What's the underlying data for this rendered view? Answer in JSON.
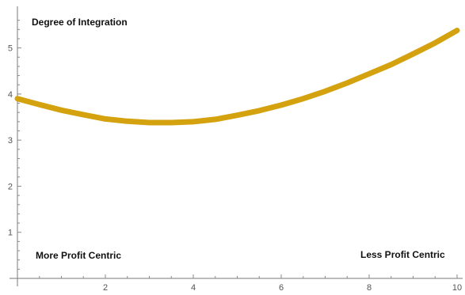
{
  "chart_data": {
    "type": "line",
    "xlim": [
      0,
      10
    ],
    "ylim": [
      0,
      5.8
    ],
    "x_ticks": [
      2,
      4,
      6,
      8,
      10
    ],
    "y_ticks": [
      1,
      2,
      3,
      4,
      5
    ],
    "grid": false,
    "series": [
      {
        "color": "#D4A20E",
        "points": [
          [
            0.0,
            3.9
          ],
          [
            0.5,
            3.77
          ],
          [
            1.0,
            3.65
          ],
          [
            1.5,
            3.55
          ],
          [
            2.0,
            3.46
          ],
          [
            2.5,
            3.41
          ],
          [
            3.0,
            3.38
          ],
          [
            3.5,
            3.38
          ],
          [
            4.0,
            3.4
          ],
          [
            4.5,
            3.45
          ],
          [
            5.0,
            3.54
          ],
          [
            5.5,
            3.64
          ],
          [
            6.0,
            3.76
          ],
          [
            6.5,
            3.9
          ],
          [
            7.0,
            4.06
          ],
          [
            7.5,
            4.24
          ],
          [
            8.0,
            4.44
          ],
          [
            8.5,
            4.64
          ],
          [
            9.0,
            4.87
          ],
          [
            9.5,
            5.11
          ],
          [
            10.0,
            5.38
          ]
        ]
      }
    ],
    "annotations": {
      "top_left": "Degree of Integration",
      "bottom_left": "More Profit Centric",
      "bottom_right": "Less Profit Centric"
    }
  }
}
